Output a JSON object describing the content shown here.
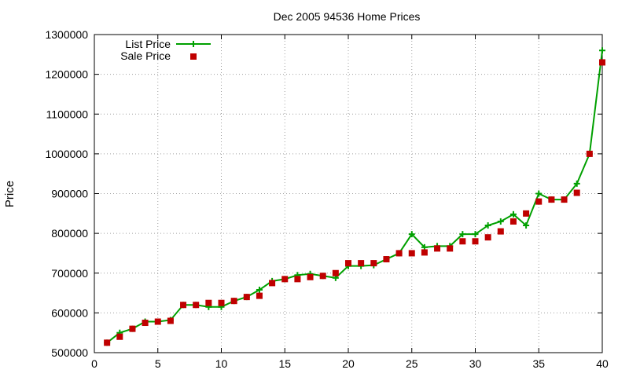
{
  "chart_data": {
    "type": "line",
    "title": "Dec 2005 94536 Home Prices",
    "xlabel": "",
    "ylabel": "Price",
    "xlim": [
      0,
      40
    ],
    "ylim": [
      500000,
      1300000
    ],
    "xticks": [
      0,
      5,
      10,
      15,
      20,
      25,
      30,
      35,
      40
    ],
    "yticks": [
      500000,
      600000,
      700000,
      800000,
      900000,
      1000000,
      1100000,
      1200000,
      1300000
    ],
    "grid": true,
    "legend_position": "top-left",
    "series": [
      {
        "name": "List Price",
        "style": "line-with-plus-markers",
        "color": "#00a000",
        "x": [
          1,
          2,
          3,
          4,
          5,
          6,
          7,
          8,
          9,
          10,
          11,
          12,
          13,
          14,
          15,
          16,
          17,
          18,
          19,
          20,
          21,
          22,
          23,
          24,
          25,
          26,
          27,
          28,
          29,
          30,
          31,
          32,
          33,
          34,
          35,
          36,
          37,
          38,
          39,
          40
        ],
        "values": [
          525000,
          550000,
          560000,
          578000,
          578000,
          582000,
          620000,
          620000,
          615000,
          615000,
          630000,
          640000,
          658000,
          680000,
          685000,
          695000,
          698000,
          693000,
          688000,
          718000,
          718000,
          720000,
          735000,
          750000,
          798000,
          765000,
          768000,
          768000,
          798000,
          798000,
          820000,
          830000,
          848000,
          820000,
          900000,
          885000,
          885000,
          925000,
          1000000,
          1260000
        ]
      },
      {
        "name": "Sale Price",
        "style": "square-markers",
        "color": "#c00000",
        "x": [
          1,
          2,
          3,
          4,
          5,
          6,
          7,
          8,
          9,
          10,
          11,
          12,
          13,
          14,
          15,
          16,
          17,
          18,
          19,
          20,
          21,
          22,
          23,
          24,
          25,
          26,
          27,
          28,
          29,
          30,
          31,
          32,
          33,
          34,
          35,
          36,
          37,
          38,
          39,
          40
        ],
        "values": [
          525000,
          540000,
          560000,
          575000,
          578000,
          580000,
          620000,
          620000,
          625000,
          625000,
          630000,
          640000,
          643000,
          675000,
          685000,
          685000,
          690000,
          693000,
          700000,
          725000,
          725000,
          725000,
          735000,
          750000,
          750000,
          752000,
          762000,
          762000,
          780000,
          780000,
          790000,
          805000,
          830000,
          850000,
          880000,
          885000,
          885000,
          902000,
          1000000,
          1230000
        ]
      }
    ]
  }
}
